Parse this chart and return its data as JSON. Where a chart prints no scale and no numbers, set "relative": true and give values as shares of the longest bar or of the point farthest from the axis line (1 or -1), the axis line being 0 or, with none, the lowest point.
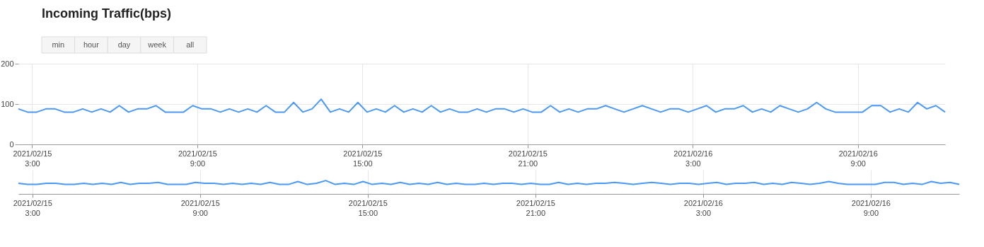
{
  "chart_data": [
    {
      "type": "line",
      "title": "Incoming Traffic(bps)",
      "annotations": [
        "min",
        "hour",
        "day",
        "week",
        "all"
      ],
      "x": [
        "2021-02-15T02:30",
        "2021-02-15T02:50",
        "2021-02-15T03:10",
        "2021-02-15T03:30",
        "2021-02-15T03:50",
        "2021-02-15T04:10",
        "2021-02-15T04:30",
        "2021-02-15T04:50",
        "2021-02-15T05:10",
        "2021-02-15T05:30",
        "2021-02-15T05:50",
        "2021-02-15T06:10",
        "2021-02-15T06:30",
        "2021-02-15T06:50",
        "2021-02-15T07:10",
        "2021-02-15T07:30",
        "2021-02-15T07:50",
        "2021-02-15T08:10",
        "2021-02-15T08:30",
        "2021-02-15T08:50",
        "2021-02-15T09:10",
        "2021-02-15T09:30",
        "2021-02-15T09:50",
        "2021-02-15T10:10",
        "2021-02-15T10:30",
        "2021-02-15T10:50",
        "2021-02-15T11:10",
        "2021-02-15T11:30",
        "2021-02-15T11:50",
        "2021-02-15T12:10",
        "2021-02-15T12:30",
        "2021-02-15T12:50",
        "2021-02-15T13:10",
        "2021-02-15T13:30",
        "2021-02-15T13:50",
        "2021-02-15T14:10",
        "2021-02-15T14:30",
        "2021-02-15T14:50",
        "2021-02-15T15:10",
        "2021-02-15T15:30",
        "2021-02-15T15:50",
        "2021-02-15T16:10",
        "2021-02-15T16:30",
        "2021-02-15T16:50",
        "2021-02-15T17:10",
        "2021-02-15T17:30",
        "2021-02-15T17:50",
        "2021-02-15T18:10",
        "2021-02-15T18:30",
        "2021-02-15T18:50",
        "2021-02-15T19:10",
        "2021-02-15T19:30",
        "2021-02-15T19:50",
        "2021-02-15T20:10",
        "2021-02-15T20:30",
        "2021-02-15T20:50",
        "2021-02-15T21:10",
        "2021-02-15T21:30",
        "2021-02-15T21:50",
        "2021-02-15T22:10",
        "2021-02-15T22:30",
        "2021-02-15T22:50",
        "2021-02-15T23:10",
        "2021-02-15T23:30",
        "2021-02-15T23:50",
        "2021-02-16T00:10",
        "2021-02-16T00:30",
        "2021-02-16T00:50",
        "2021-02-16T01:10",
        "2021-02-16T01:30",
        "2021-02-16T01:50",
        "2021-02-16T02:10",
        "2021-02-16T02:30",
        "2021-02-16T02:50",
        "2021-02-16T03:10",
        "2021-02-16T03:30",
        "2021-02-16T03:50",
        "2021-02-16T04:10",
        "2021-02-16T04:30",
        "2021-02-16T04:50",
        "2021-02-16T05:10",
        "2021-02-16T05:30",
        "2021-02-16T05:50",
        "2021-02-16T06:10",
        "2021-02-16T06:30",
        "2021-02-16T06:50",
        "2021-02-16T07:10",
        "2021-02-16T07:30",
        "2021-02-16T07:50",
        "2021-02-16T08:10",
        "2021-02-16T08:30",
        "2021-02-16T08:50",
        "2021-02-16T09:10",
        "2021-02-16T09:30",
        "2021-02-16T09:50",
        "2021-02-16T10:10",
        "2021-02-16T10:30",
        "2021-02-16T10:50",
        "2021-02-16T11:10",
        "2021-02-16T11:30",
        "2021-02-16T11:50",
        "2021-02-16T12:10"
      ],
      "series": [
        {
          "color": "#4a98f7",
          "values": [
            88,
            80,
            80,
            88,
            88,
            80,
            80,
            88,
            80,
            88,
            80,
            96,
            80,
            88,
            88,
            96,
            80,
            80,
            80,
            96,
            88,
            88,
            80,
            88,
            80,
            88,
            80,
            96,
            80,
            80,
            104,
            80,
            88,
            112,
            80,
            88,
            80,
            104,
            80,
            88,
            80,
            96,
            80,
            88,
            80,
            96,
            80,
            88,
            80,
            80,
            88,
            80,
            88,
            88,
            80,
            88,
            80,
            80,
            96,
            80,
            88,
            80,
            88,
            88,
            96,
            88,
            80,
            88,
            96,
            88,
            80,
            88,
            88,
            80,
            88,
            96,
            80,
            88,
            88,
            96,
            80,
            88,
            80,
            96,
            88,
            80,
            88,
            104,
            88,
            80,
            80,
            80,
            80,
            96,
            96,
            80,
            88,
            80,
            104,
            88,
            96,
            80
          ]
        }
      ],
      "xlim": [
        "2021-02-15T02:30",
        "2021-02-16T12:10"
      ],
      "xticks": [
        {
          "value": "2021-02-15T03:00",
          "label": "2021/02/15 3:00"
        },
        {
          "value": "2021-02-15T09:00",
          "label": "2021/02/15 9:00"
        },
        {
          "value": "2021-02-15T15:00",
          "label": "2021/02/15 15:00"
        },
        {
          "value": "2021-02-15T21:00",
          "label": "2021/02/15 21:00"
        },
        {
          "value": "2021-02-16T03:00",
          "label": "2021/02/16 3:00"
        },
        {
          "value": "2021-02-16T09:00",
          "label": "2021/02/16 9:00"
        }
      ],
      "ylim": [
        0,
        200
      ],
      "yticks": [
        0,
        100,
        200
      ],
      "grid": true,
      "legend": false,
      "marker": "none",
      "line_style": "solid"
    },
    {
      "type": "line",
      "x": [
        "2021-02-15T02:30",
        "2021-02-15T02:50",
        "2021-02-15T03:10",
        "2021-02-15T03:30",
        "2021-02-15T03:50",
        "2021-02-15T04:10",
        "2021-02-15T04:30",
        "2021-02-15T04:50",
        "2021-02-15T05:10",
        "2021-02-15T05:30",
        "2021-02-15T05:50",
        "2021-02-15T06:10",
        "2021-02-15T06:30",
        "2021-02-15T06:50",
        "2021-02-15T07:10",
        "2021-02-15T07:30",
        "2021-02-15T07:50",
        "2021-02-15T08:10",
        "2021-02-15T08:30",
        "2021-02-15T08:50",
        "2021-02-15T09:10",
        "2021-02-15T09:30",
        "2021-02-15T09:50",
        "2021-02-15T10:10",
        "2021-02-15T10:30",
        "2021-02-15T10:50",
        "2021-02-15T11:10",
        "2021-02-15T11:30",
        "2021-02-15T11:50",
        "2021-02-15T12:10",
        "2021-02-15T12:30",
        "2021-02-15T12:50",
        "2021-02-15T13:10",
        "2021-02-15T13:30",
        "2021-02-15T13:50",
        "2021-02-15T14:10",
        "2021-02-15T14:30",
        "2021-02-15T14:50",
        "2021-02-15T15:10",
        "2021-02-15T15:30",
        "2021-02-15T15:50",
        "2021-02-15T16:10",
        "2021-02-15T16:30",
        "2021-02-15T16:50",
        "2021-02-15T17:10",
        "2021-02-15T17:30",
        "2021-02-15T17:50",
        "2021-02-15T18:10",
        "2021-02-15T18:30",
        "2021-02-15T18:50",
        "2021-02-15T19:10",
        "2021-02-15T19:30",
        "2021-02-15T19:50",
        "2021-02-15T20:10",
        "2021-02-15T20:30",
        "2021-02-15T20:50",
        "2021-02-15T21:10",
        "2021-02-15T21:30",
        "2021-02-15T21:50",
        "2021-02-15T22:10",
        "2021-02-15T22:30",
        "2021-02-15T22:50",
        "2021-02-15T23:10",
        "2021-02-15T23:30",
        "2021-02-15T23:50",
        "2021-02-16T00:10",
        "2021-02-16T00:30",
        "2021-02-16T00:50",
        "2021-02-16T01:10",
        "2021-02-16T01:30",
        "2021-02-16T01:50",
        "2021-02-16T02:10",
        "2021-02-16T02:30",
        "2021-02-16T02:50",
        "2021-02-16T03:10",
        "2021-02-16T03:30",
        "2021-02-16T03:50",
        "2021-02-16T04:10",
        "2021-02-16T04:30",
        "2021-02-16T04:50",
        "2021-02-16T05:10",
        "2021-02-16T05:30",
        "2021-02-16T05:50",
        "2021-02-16T06:10",
        "2021-02-16T06:30",
        "2021-02-16T06:50",
        "2021-02-16T07:10",
        "2021-02-16T07:30",
        "2021-02-16T07:50",
        "2021-02-16T08:10",
        "2021-02-16T08:30",
        "2021-02-16T08:50",
        "2021-02-16T09:10",
        "2021-02-16T09:30",
        "2021-02-16T09:50",
        "2021-02-16T10:10",
        "2021-02-16T10:30",
        "2021-02-16T10:50",
        "2021-02-16T11:10",
        "2021-02-16T11:30",
        "2021-02-16T11:50",
        "2021-02-16T12:10"
      ],
      "series": [
        {
          "color": "#4a98f7",
          "values": [
            0.79,
            0.71,
            0.71,
            0.79,
            0.79,
            0.71,
            0.71,
            0.79,
            0.71,
            0.79,
            0.71,
            0.86,
            0.71,
            0.79,
            0.79,
            0.86,
            0.71,
            0.71,
            0.71,
            0.86,
            0.79,
            0.79,
            0.71,
            0.79,
            0.71,
            0.79,
            0.71,
            0.86,
            0.71,
            0.71,
            0.93,
            0.71,
            0.79,
            1,
            0.71,
            0.79,
            0.71,
            0.93,
            0.71,
            0.79,
            0.71,
            0.86,
            0.71,
            0.79,
            0.71,
            0.86,
            0.71,
            0.79,
            0.71,
            0.71,
            0.79,
            0.71,
            0.79,
            0.79,
            0.71,
            0.79,
            0.71,
            0.71,
            0.86,
            0.71,
            0.79,
            0.71,
            0.79,
            0.79,
            0.86,
            0.79,
            0.71,
            0.79,
            0.86,
            0.79,
            0.71,
            0.79,
            0.79,
            0.71,
            0.79,
            0.86,
            0.71,
            0.79,
            0.79,
            0.86,
            0.71,
            0.79,
            0.71,
            0.86,
            0.79,
            0.71,
            0.79,
            0.93,
            0.79,
            0.71,
            0.71,
            0.71,
            0.71,
            0.86,
            0.86,
            0.71,
            0.79,
            0.71,
            0.93,
            0.79,
            0.86,
            0.71
          ]
        }
      ],
      "xlim": [
        "2021-02-15T02:30",
        "2021-02-16T12:10"
      ],
      "xticks": [
        {
          "value": "2021-02-15T03:00",
          "label": "2021/02/15 3:00"
        },
        {
          "value": "2021-02-15T09:00",
          "label": "2021/02/15 9:00"
        },
        {
          "value": "2021-02-15T15:00",
          "label": "2021/02/15 15:00"
        },
        {
          "value": "2021-02-15T21:00",
          "label": "2021/02/15 21:00"
        },
        {
          "value": "2021-02-16T03:00",
          "label": "2021/02/16 3:00"
        },
        {
          "value": "2021-02-16T09:00",
          "label": "2021/02/16 9:00"
        }
      ],
      "relative": true,
      "grid": "x",
      "legend": false,
      "marker": "none",
      "line_style": "solid"
    }
  ]
}
